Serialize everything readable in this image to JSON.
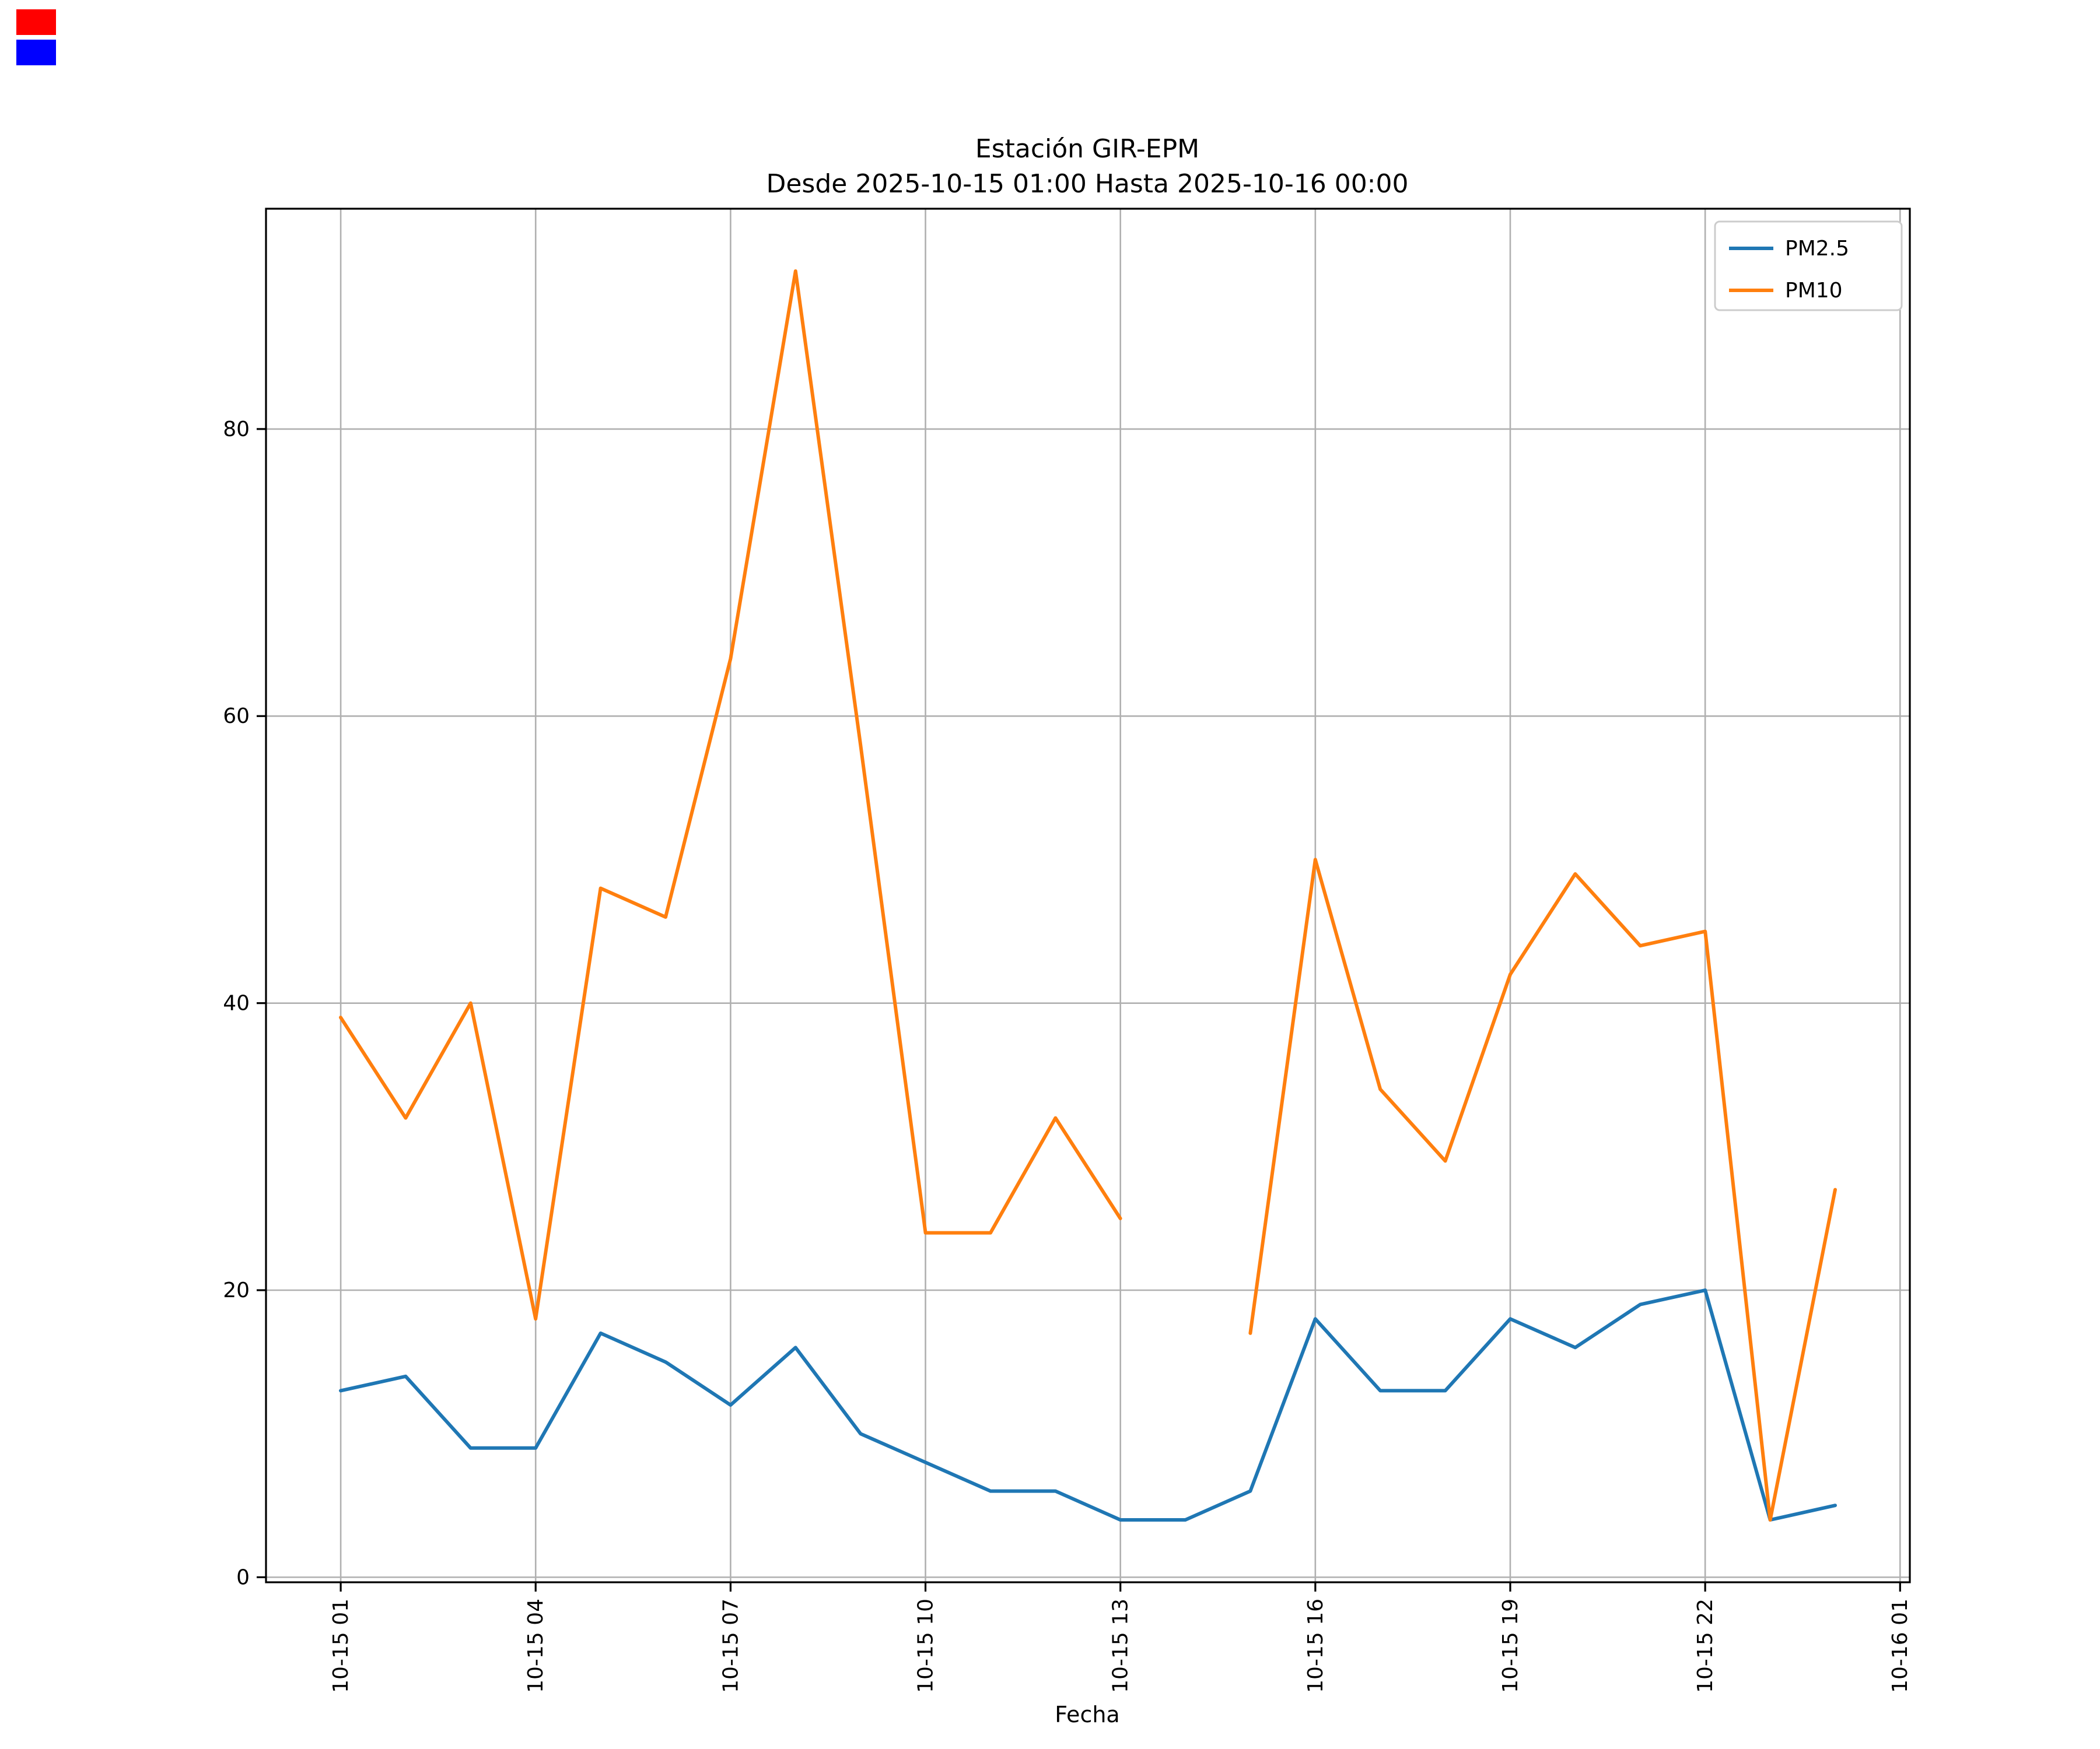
{
  "figure": {
    "background": "#ffffff",
    "corner_markers": {
      "red": "#ff0000",
      "blue": "#0000ff"
    }
  },
  "chart": {
    "title_line1": "Estación GIR-EPM",
    "title_line2": "Desde 2025-10-15 01:00 Hasta 2025-10-16 00:00",
    "xlabel": "Fecha"
  },
  "chart_data": {
    "type": "line",
    "title": "Estación GIR-EPM",
    "subtitle": "Desde 2025-10-15 01:00 Hasta 2025-10-16 00:00",
    "xlabel": "Fecha",
    "grid": true,
    "legend_position": "upper right",
    "x": [
      1,
      2,
      3,
      4,
      5,
      6,
      7,
      8,
      9,
      10,
      11,
      12,
      13,
      14,
      15,
      16,
      17,
      18,
      19,
      20,
      21,
      22,
      23,
      24
    ],
    "xtick_hours": [
      1,
      4,
      7,
      10,
      13,
      16,
      19,
      22,
      25
    ],
    "xtick_labels": [
      "10-15 01",
      "10-15 04",
      "10-15 07",
      "10-15 10",
      "10-15 13",
      "10-15 16",
      "10-15 19",
      "10-15 22",
      "10-16 01"
    ],
    "ytick_values": [
      0,
      20,
      40,
      60,
      80
    ],
    "xlim": [
      -0.15,
      25.15
    ],
    "ylim": [
      -0.35,
      95.35
    ],
    "series": [
      {
        "name": "PM2.5",
        "color": "#1f77b4",
        "values": [
          13,
          14,
          9,
          9,
          17,
          15,
          12,
          16,
          10,
          8,
          6,
          6,
          4,
          4,
          6,
          18,
          13,
          13,
          18,
          16,
          19,
          20,
          4,
          5
        ]
      },
      {
        "name": "PM10",
        "color": "#ff7f0e",
        "values": [
          39,
          32,
          40,
          18,
          48,
          46,
          64,
          91,
          58,
          24,
          24,
          32,
          25,
          null,
          17,
          50,
          34,
          29,
          42,
          49,
          44,
          45,
          4,
          27
        ]
      }
    ]
  }
}
